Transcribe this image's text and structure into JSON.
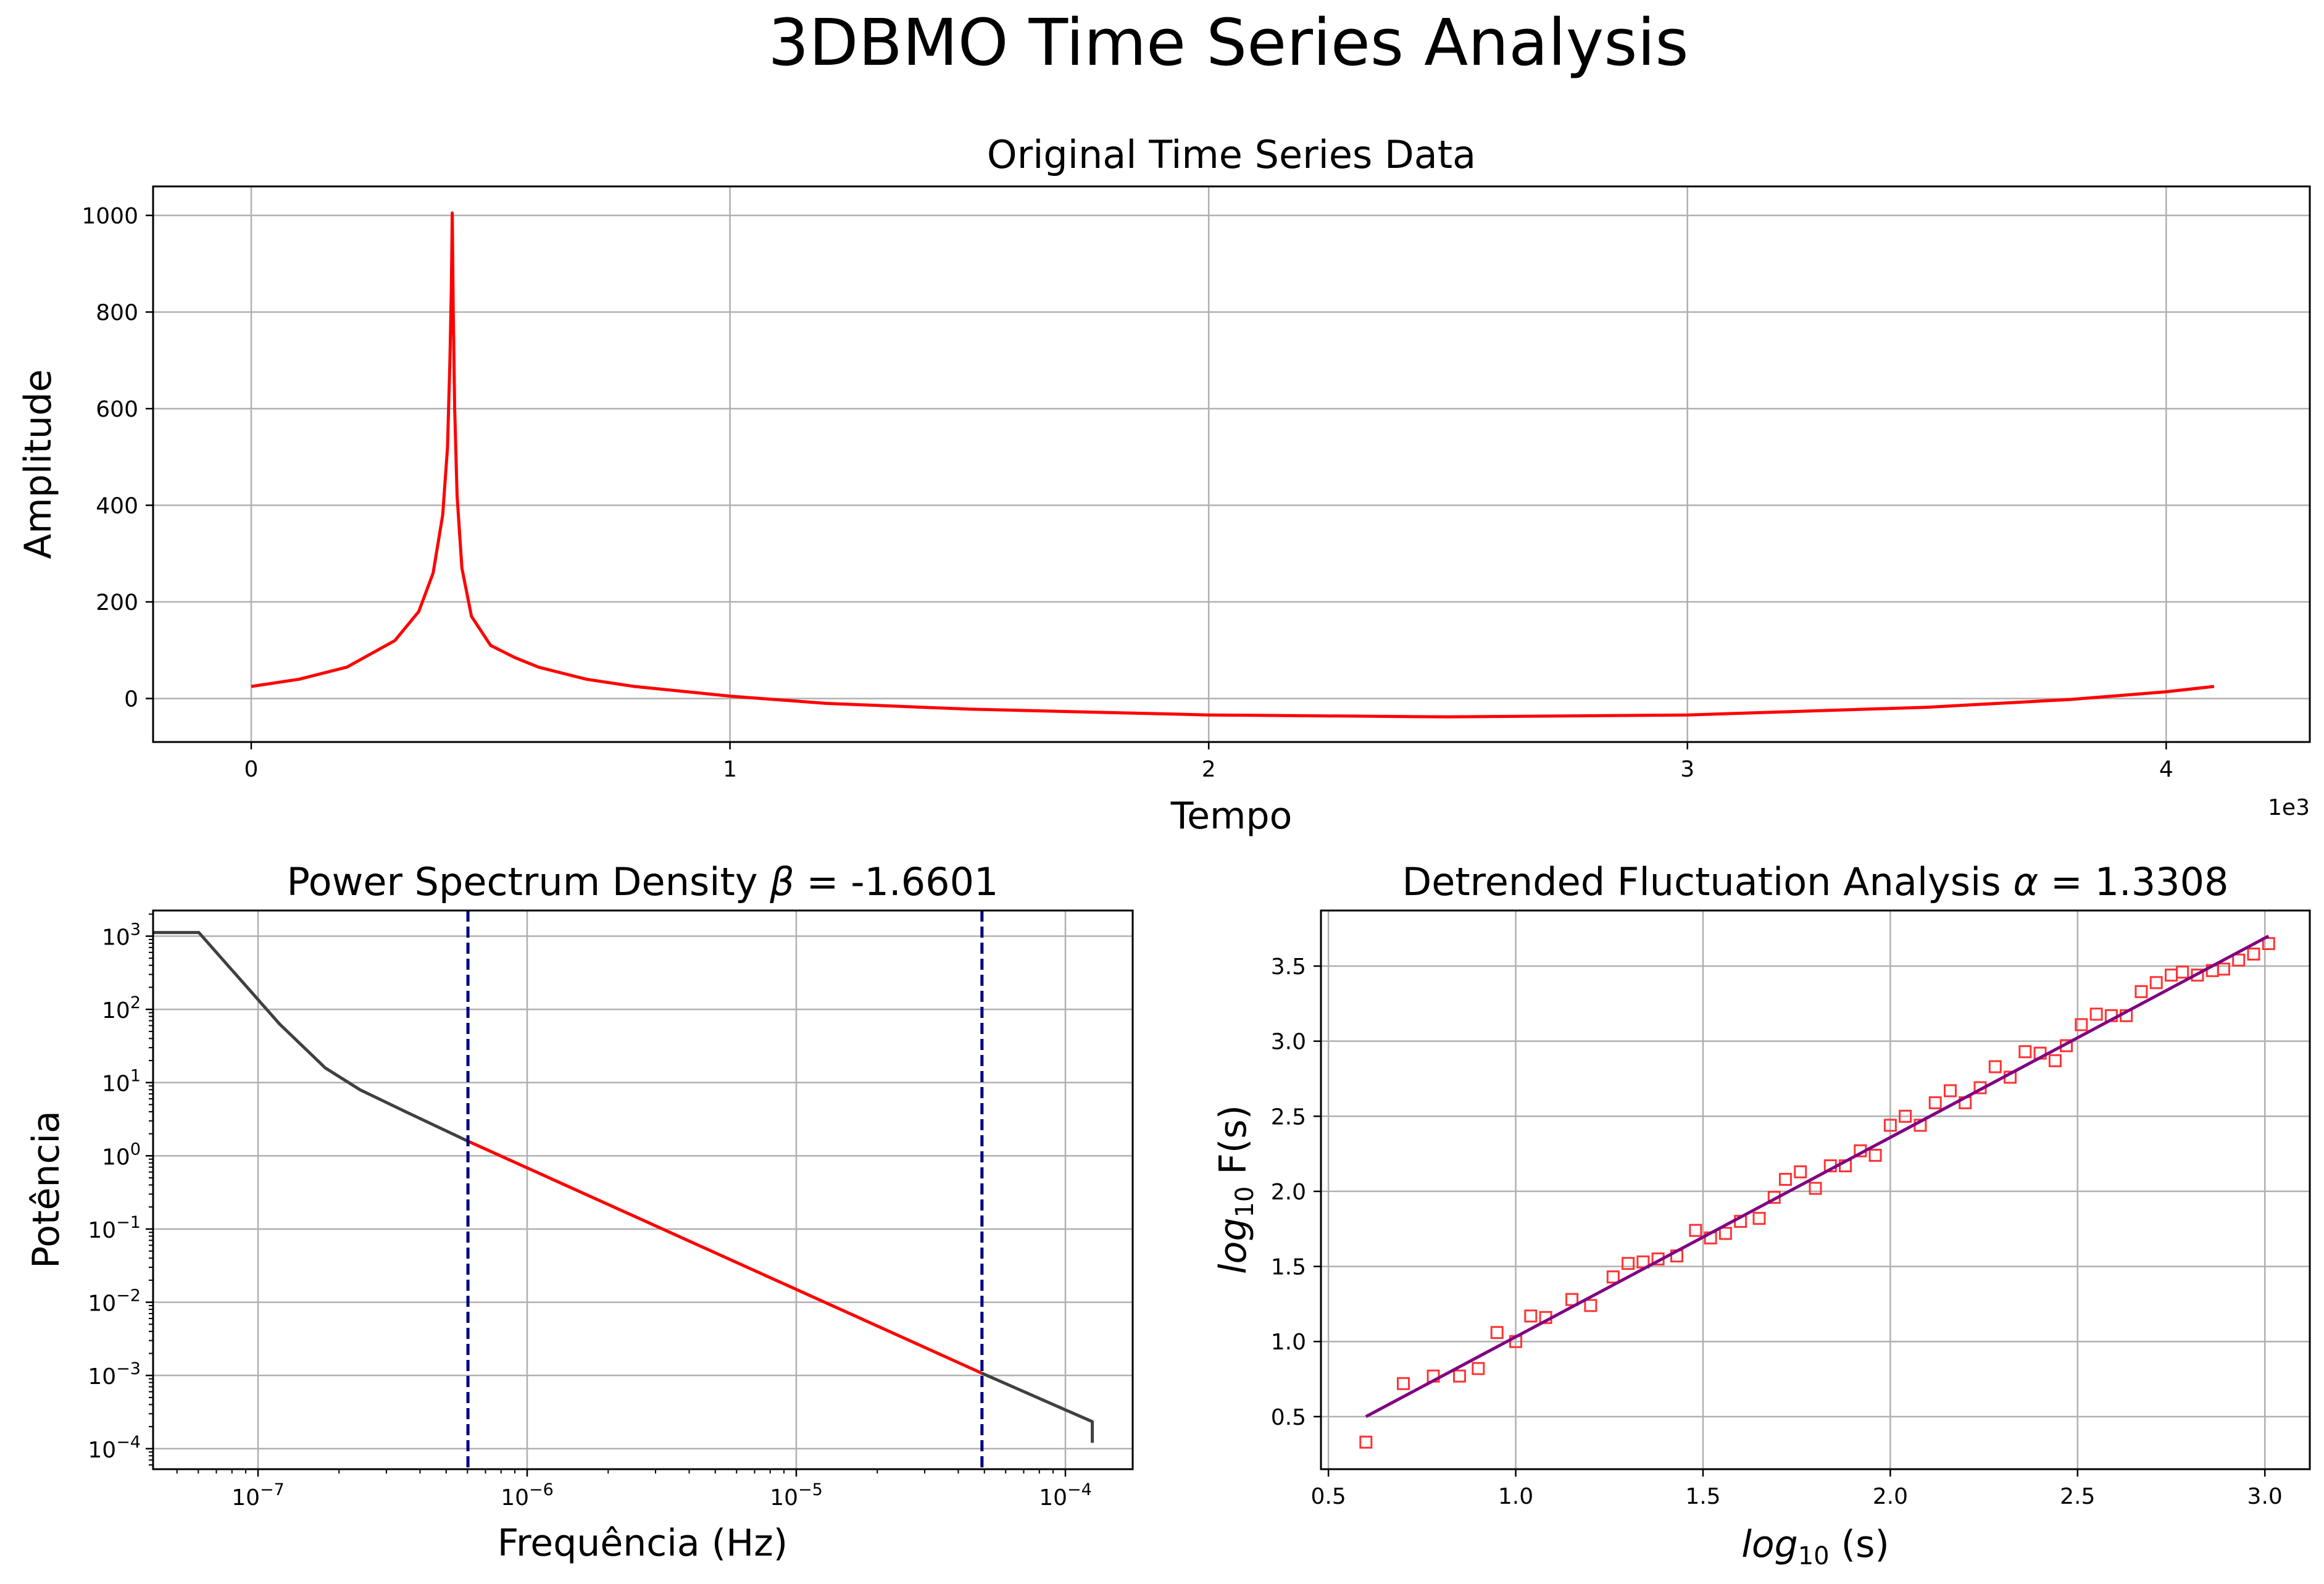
{
  "figure": {
    "title": "3DBMO Time Series Analysis"
  },
  "chart_data": [
    {
      "type": "line",
      "title": "Original Time Series Data",
      "xlabel": "Tempo",
      "ylabel": "Amplitude",
      "x_offset_label": "1e3",
      "xlim": [
        -0.205,
        4.3
      ],
      "ylim": [
        -90,
        1060
      ],
      "xticks": [
        0,
        1,
        2,
        3,
        4
      ],
      "yticks": [
        0,
        200,
        400,
        600,
        800,
        1000
      ],
      "grid": true,
      "series": [
        {
          "color": "#ff0000",
          "x": [
            0,
            0.1,
            0.2,
            0.3,
            0.35,
            0.38,
            0.4,
            0.41,
            0.415,
            0.418,
            0.42,
            0.422,
            0.425,
            0.43,
            0.44,
            0.46,
            0.5,
            0.55,
            0.6,
            0.7,
            0.8,
            1.0,
            1.2,
            1.5,
            2.0,
            2.5,
            3.0,
            3.5,
            3.8,
            4.0,
            4.1
          ],
          "y": [
            25,
            40,
            65,
            120,
            180,
            260,
            380,
            520,
            700,
            850,
            1005,
            800,
            600,
            420,
            270,
            170,
            110,
            85,
            65,
            40,
            25,
            5,
            -10,
            -22,
            -34,
            -38,
            -34,
            -18,
            -2,
            14,
            25
          ]
        }
      ]
    },
    {
      "type": "line",
      "title": "Power Spectrum Density",
      "title_symbol": "β",
      "title_value": "= -1.6601",
      "xlabel": "Frequência (Hz)",
      "ylabel": "Potência",
      "xscale": "log",
      "yscale": "log",
      "xlim_log10": [
        -7.39,
        -3.75
      ],
      "ylim_log10": [
        -4.28,
        3.35
      ],
      "xticks_log10": [
        -7,
        -6,
        -5,
        -4
      ],
      "yticks_log10": [
        -4,
        -3,
        -2,
        -1,
        0,
        1,
        2,
        3
      ],
      "grid": true,
      "series": [
        {
          "color": "#404040",
          "x_log10": [
            -7.39,
            -7.22,
            -6.92,
            -6.75,
            -6.62,
            -6.45,
            -6.22
          ],
          "y_log10": [
            3.05,
            3.05,
            1.8,
            1.2,
            0.9,
            0.6,
            0.2
          ]
        },
        {
          "color": "#ff0000",
          "x_log10": [
            -6.22,
            -4.31
          ],
          "y_log10": [
            0.2,
            -2.97
          ]
        },
        {
          "color": "#404040",
          "x_log10": [
            -4.31,
            -4.0,
            -3.9,
            -3.9
          ],
          "y_log10": [
            -2.97,
            -3.47,
            -3.63,
            -3.92
          ]
        }
      ],
      "vlines_log10": [
        -6.22,
        -4.31
      ],
      "vline_color": "#000080"
    },
    {
      "type": "scatter",
      "title": "Detrended Fluctuation Analysis",
      "title_symbol": "α",
      "title_value": "= 1.3308",
      "xlabel_main": "log",
      "xlabel_sub": "10",
      "xlabel_tail": " (s)",
      "ylabel_main": "log",
      "ylabel_sub": "10",
      "ylabel_tail": " F(s)",
      "xlim": [
        0.48,
        3.12
      ],
      "ylim": [
        0.15,
        3.87
      ],
      "xticks": [
        0.5,
        1.0,
        1.5,
        2.0,
        2.5,
        3.0
      ],
      "yticks": [
        0.5,
        1.0,
        1.5,
        2.0,
        2.5,
        3.0,
        3.5
      ],
      "grid": true,
      "marker_color": "#ff3333",
      "fit_color": "#800080",
      "fit": {
        "x": [
          0.6,
          3.01
        ],
        "y": [
          0.5,
          3.7
        ]
      },
      "points": {
        "x": [
          0.6,
          0.7,
          0.78,
          0.85,
          0.9,
          0.95,
          1.0,
          1.04,
          1.08,
          1.15,
          1.2,
          1.26,
          1.3,
          1.34,
          1.38,
          1.43,
          1.48,
          1.52,
          1.56,
          1.6,
          1.65,
          1.69,
          1.72,
          1.76,
          1.8,
          1.84,
          1.88,
          1.92,
          1.96,
          2.0,
          2.04,
          2.08,
          2.12,
          2.16,
          2.2,
          2.24,
          2.28,
          2.32,
          2.36,
          2.4,
          2.44,
          2.47,
          2.51,
          2.55,
          2.59,
          2.63,
          2.67,
          2.71,
          2.75,
          2.78,
          2.82,
          2.86,
          2.89,
          2.93,
          2.97,
          3.01
        ],
        "y": [
          0.33,
          0.72,
          0.77,
          0.77,
          0.82,
          1.06,
          1.0,
          1.17,
          1.16,
          1.28,
          1.24,
          1.43,
          1.52,
          1.53,
          1.55,
          1.57,
          1.74,
          1.69,
          1.72,
          1.8,
          1.82,
          1.96,
          2.08,
          2.13,
          2.02,
          2.17,
          2.17,
          2.27,
          2.24,
          2.44,
          2.5,
          2.44,
          2.59,
          2.67,
          2.59,
          2.69,
          2.83,
          2.76,
          2.93,
          2.92,
          2.87,
          2.97,
          3.11,
          3.18,
          3.17,
          3.17,
          3.33,
          3.39,
          3.44,
          3.46,
          3.44,
          3.47,
          3.48,
          3.54,
          3.58,
          3.65
        ]
      }
    }
  ]
}
